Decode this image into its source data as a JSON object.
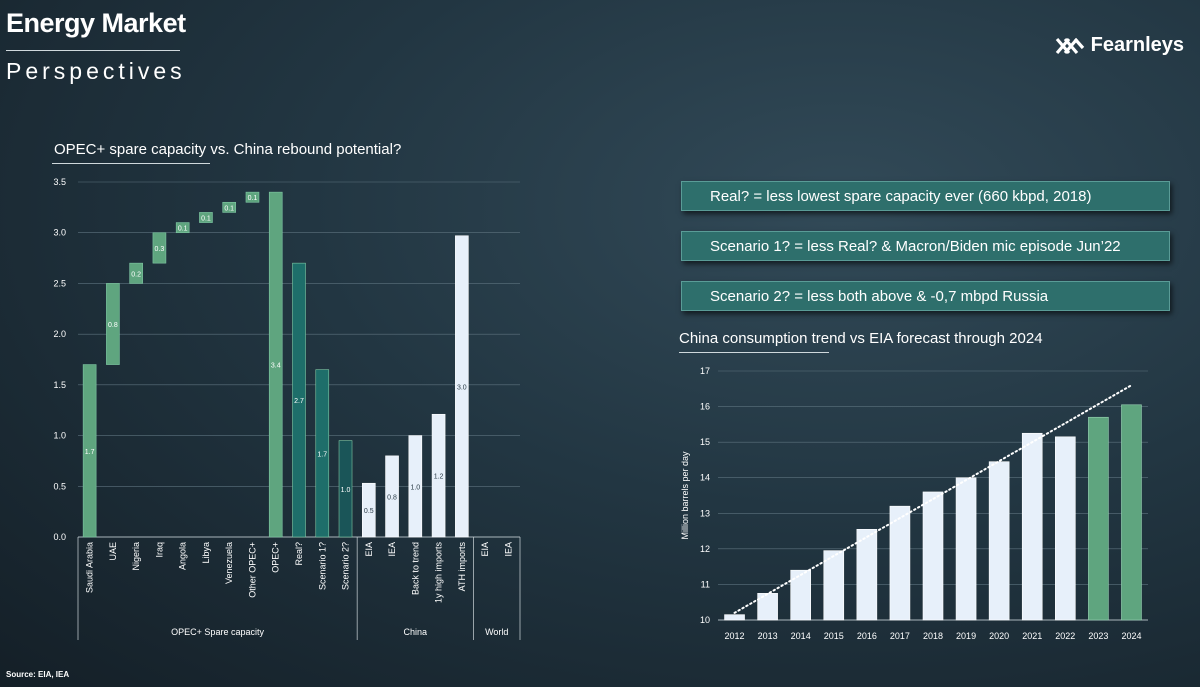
{
  "header": {
    "title": "Energy Market",
    "subtitle": "Perspectives",
    "brand": "Fearnleys"
  },
  "source": "Source: EIA, IEA",
  "callouts": [
    "Real? =  less lowest spare capacity ever (660 kbpd, 2018)",
    "Scenario 1? = less Real? & Macron/Biden mic episode Jun’22",
    "Scenario 2? = less both above &  -0,7 mbpd Russia"
  ],
  "colors": {
    "green": "#5fa57f",
    "teal": "#1e6e6a",
    "dark_teal": "#1a5558",
    "light": "#e7f0fa"
  },
  "chart_data": [
    {
      "type": "bar",
      "title": "OPEC+ spare capacity vs. China rebound potential?",
      "ylim": [
        0,
        3.5
      ],
      "yticks": [
        "0.0",
        "0.5",
        "1.0",
        "1.5",
        "2.0",
        "2.5",
        "3.0",
        "3.5"
      ],
      "grid": true,
      "bars": [
        {
          "label": "Saudi Arabia",
          "base": 0,
          "value": 1.7,
          "text": "1.7",
          "color": "green"
        },
        {
          "label": "UAE",
          "base": 1.7,
          "value": 0.8,
          "text": "0.8",
          "color": "green"
        },
        {
          "label": "Nigeria",
          "base": 2.5,
          "value": 0.2,
          "text": "0.2",
          "color": "green"
        },
        {
          "label": "Iraq",
          "base": 2.7,
          "value": 0.3,
          "text": "0.3",
          "color": "green"
        },
        {
          "label": "Angola",
          "base": 3.0,
          "value": 0.1,
          "text": "0.1",
          "color": "green"
        },
        {
          "label": "Libya",
          "base": 3.1,
          "value": 0.1,
          "text": "0.1",
          "color": "green"
        },
        {
          "label": "Venezuela",
          "base": 3.2,
          "value": 0.1,
          "text": "0.1",
          "color": "green"
        },
        {
          "label": "Other OPEC+",
          "base": 3.3,
          "value": 0.1,
          "text": "0.1",
          "color": "green"
        },
        {
          "label": "OPEC+",
          "base": 0,
          "value": 3.4,
          "text": "3.4",
          "color": "green"
        },
        {
          "label": "Real?",
          "base": 0,
          "value": 2.7,
          "text": "2.7",
          "color": "teal"
        },
        {
          "label": "Scenario 1?",
          "base": 0,
          "value": 1.65,
          "text": "1.7",
          "color": "teal"
        },
        {
          "label": "Scenario 2?",
          "base": 0,
          "value": 0.95,
          "text": "1.0",
          "color": "dark_teal"
        },
        {
          "label": "EIA",
          "base": 0,
          "value": 0.53,
          "text": "0.5",
          "color": "light"
        },
        {
          "label": "IEA",
          "base": 0,
          "value": 0.8,
          "text": "0.8",
          "color": "light"
        },
        {
          "label": "Back to trend",
          "base": 0,
          "value": 1.0,
          "text": "1.0",
          "color": "light"
        },
        {
          "label": "1y high imports",
          "base": 0,
          "value": 1.21,
          "text": "1.2",
          "color": "light"
        },
        {
          "label": "ATH imports",
          "base": 0,
          "value": 2.97,
          "text": "3.0",
          "color": "light"
        },
        {
          "label": "EIA",
          "base": 0,
          "value": 0,
          "text": "",
          "color": "light"
        },
        {
          "label": "IEA",
          "base": 0,
          "value": 0,
          "text": "",
          "color": "light"
        }
      ],
      "groups": [
        {
          "label": "OPEC+ Spare capacity",
          "from": 0,
          "to": 11
        },
        {
          "label": "China",
          "from": 12,
          "to": 16
        },
        {
          "label": "World",
          "from": 17,
          "to": 18
        }
      ]
    },
    {
      "type": "bar",
      "title": "China consumption trend vs EIA forecast through 2024",
      "ylabel": "Million barrels per day",
      "ylim": [
        10,
        17
      ],
      "yticks": [
        "10",
        "11",
        "12",
        "13",
        "14",
        "15",
        "16",
        "17"
      ],
      "grid": true,
      "categories": [
        "2012",
        "2013",
        "2014",
        "2015",
        "2016",
        "2017",
        "2018",
        "2019",
        "2020",
        "2021",
        "2022",
        "2023",
        "2024"
      ],
      "values": [
        10.15,
        10.75,
        11.4,
        11.95,
        12.55,
        13.2,
        13.6,
        14.0,
        14.45,
        15.25,
        15.15,
        15.7,
        16.05
      ],
      "forecast": [
        false,
        false,
        false,
        false,
        false,
        false,
        false,
        false,
        false,
        false,
        false,
        true,
        true
      ],
      "trendline": {
        "style": "dotted",
        "from": [
          0,
          10.2
        ],
        "to": [
          12,
          16.6
        ]
      }
    }
  ]
}
